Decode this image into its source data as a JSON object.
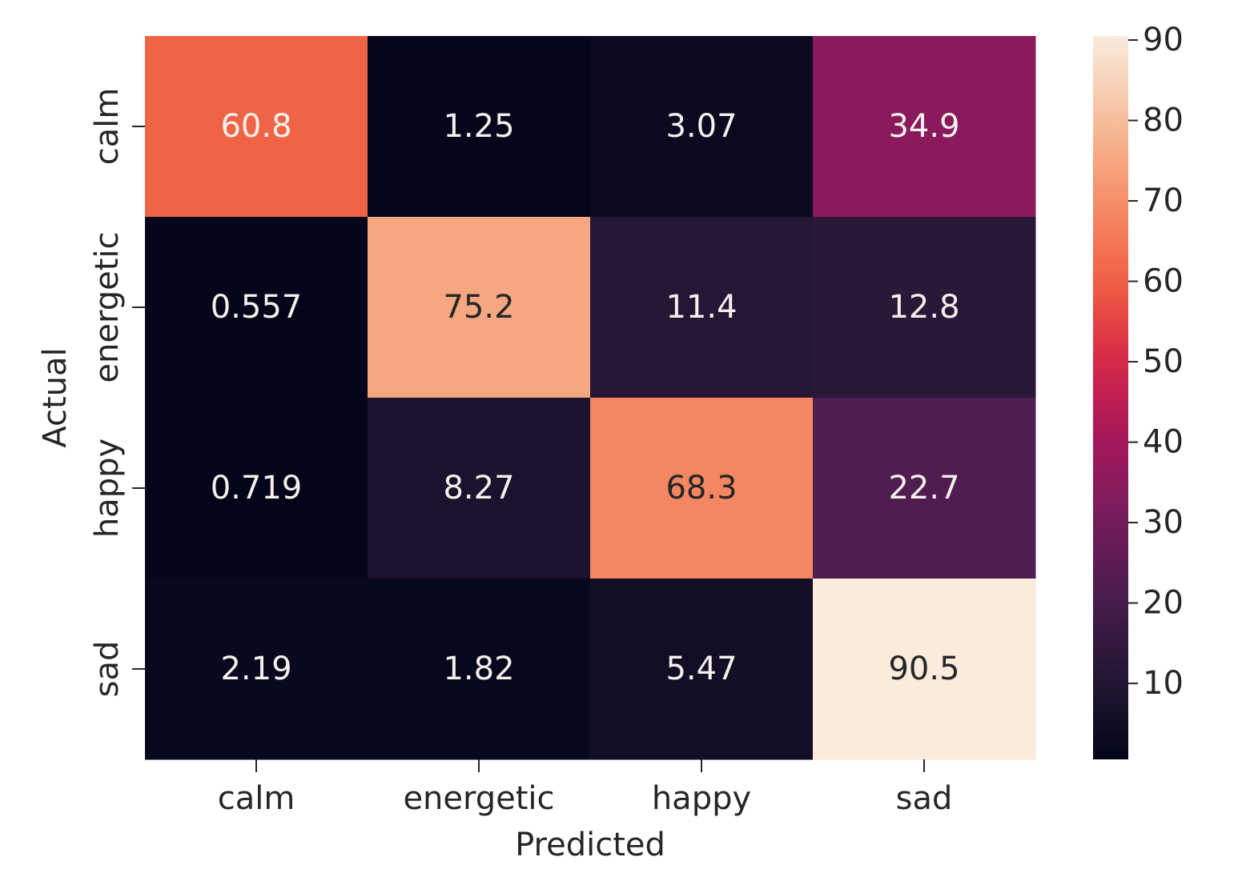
{
  "chart_data": {
    "type": "heatmap",
    "xlabel": "Predicted",
    "ylabel": "Actual",
    "x_categories": [
      "calm",
      "energetic",
      "happy",
      "sad"
    ],
    "y_categories": [
      "calm",
      "energetic",
      "happy",
      "sad"
    ],
    "values": [
      [
        60.8,
        1.25,
        3.07,
        34.9
      ],
      [
        0.557,
        75.2,
        11.4,
        12.8
      ],
      [
        0.719,
        8.27,
        68.3,
        22.7
      ],
      [
        2.19,
        1.82,
        5.47,
        90.5
      ]
    ],
    "value_labels": [
      [
        "60.8",
        "1.25",
        "3.07",
        "34.9"
      ],
      [
        "0.557",
        "75.2",
        "11.4",
        "12.8"
      ],
      [
        "0.719",
        "8.27",
        "68.3",
        "22.7"
      ],
      [
        "2.19",
        "1.82",
        "5.47",
        "90.5"
      ]
    ],
    "colormap": "rocket",
    "colorbar": {
      "range": [
        0.557,
        90.5
      ],
      "ticks": [
        10,
        20,
        30,
        40,
        50,
        60,
        70,
        80,
        90
      ],
      "tick_labels": [
        "10",
        "20",
        "30",
        "40",
        "50",
        "60",
        "70",
        "80",
        "90"
      ]
    }
  }
}
